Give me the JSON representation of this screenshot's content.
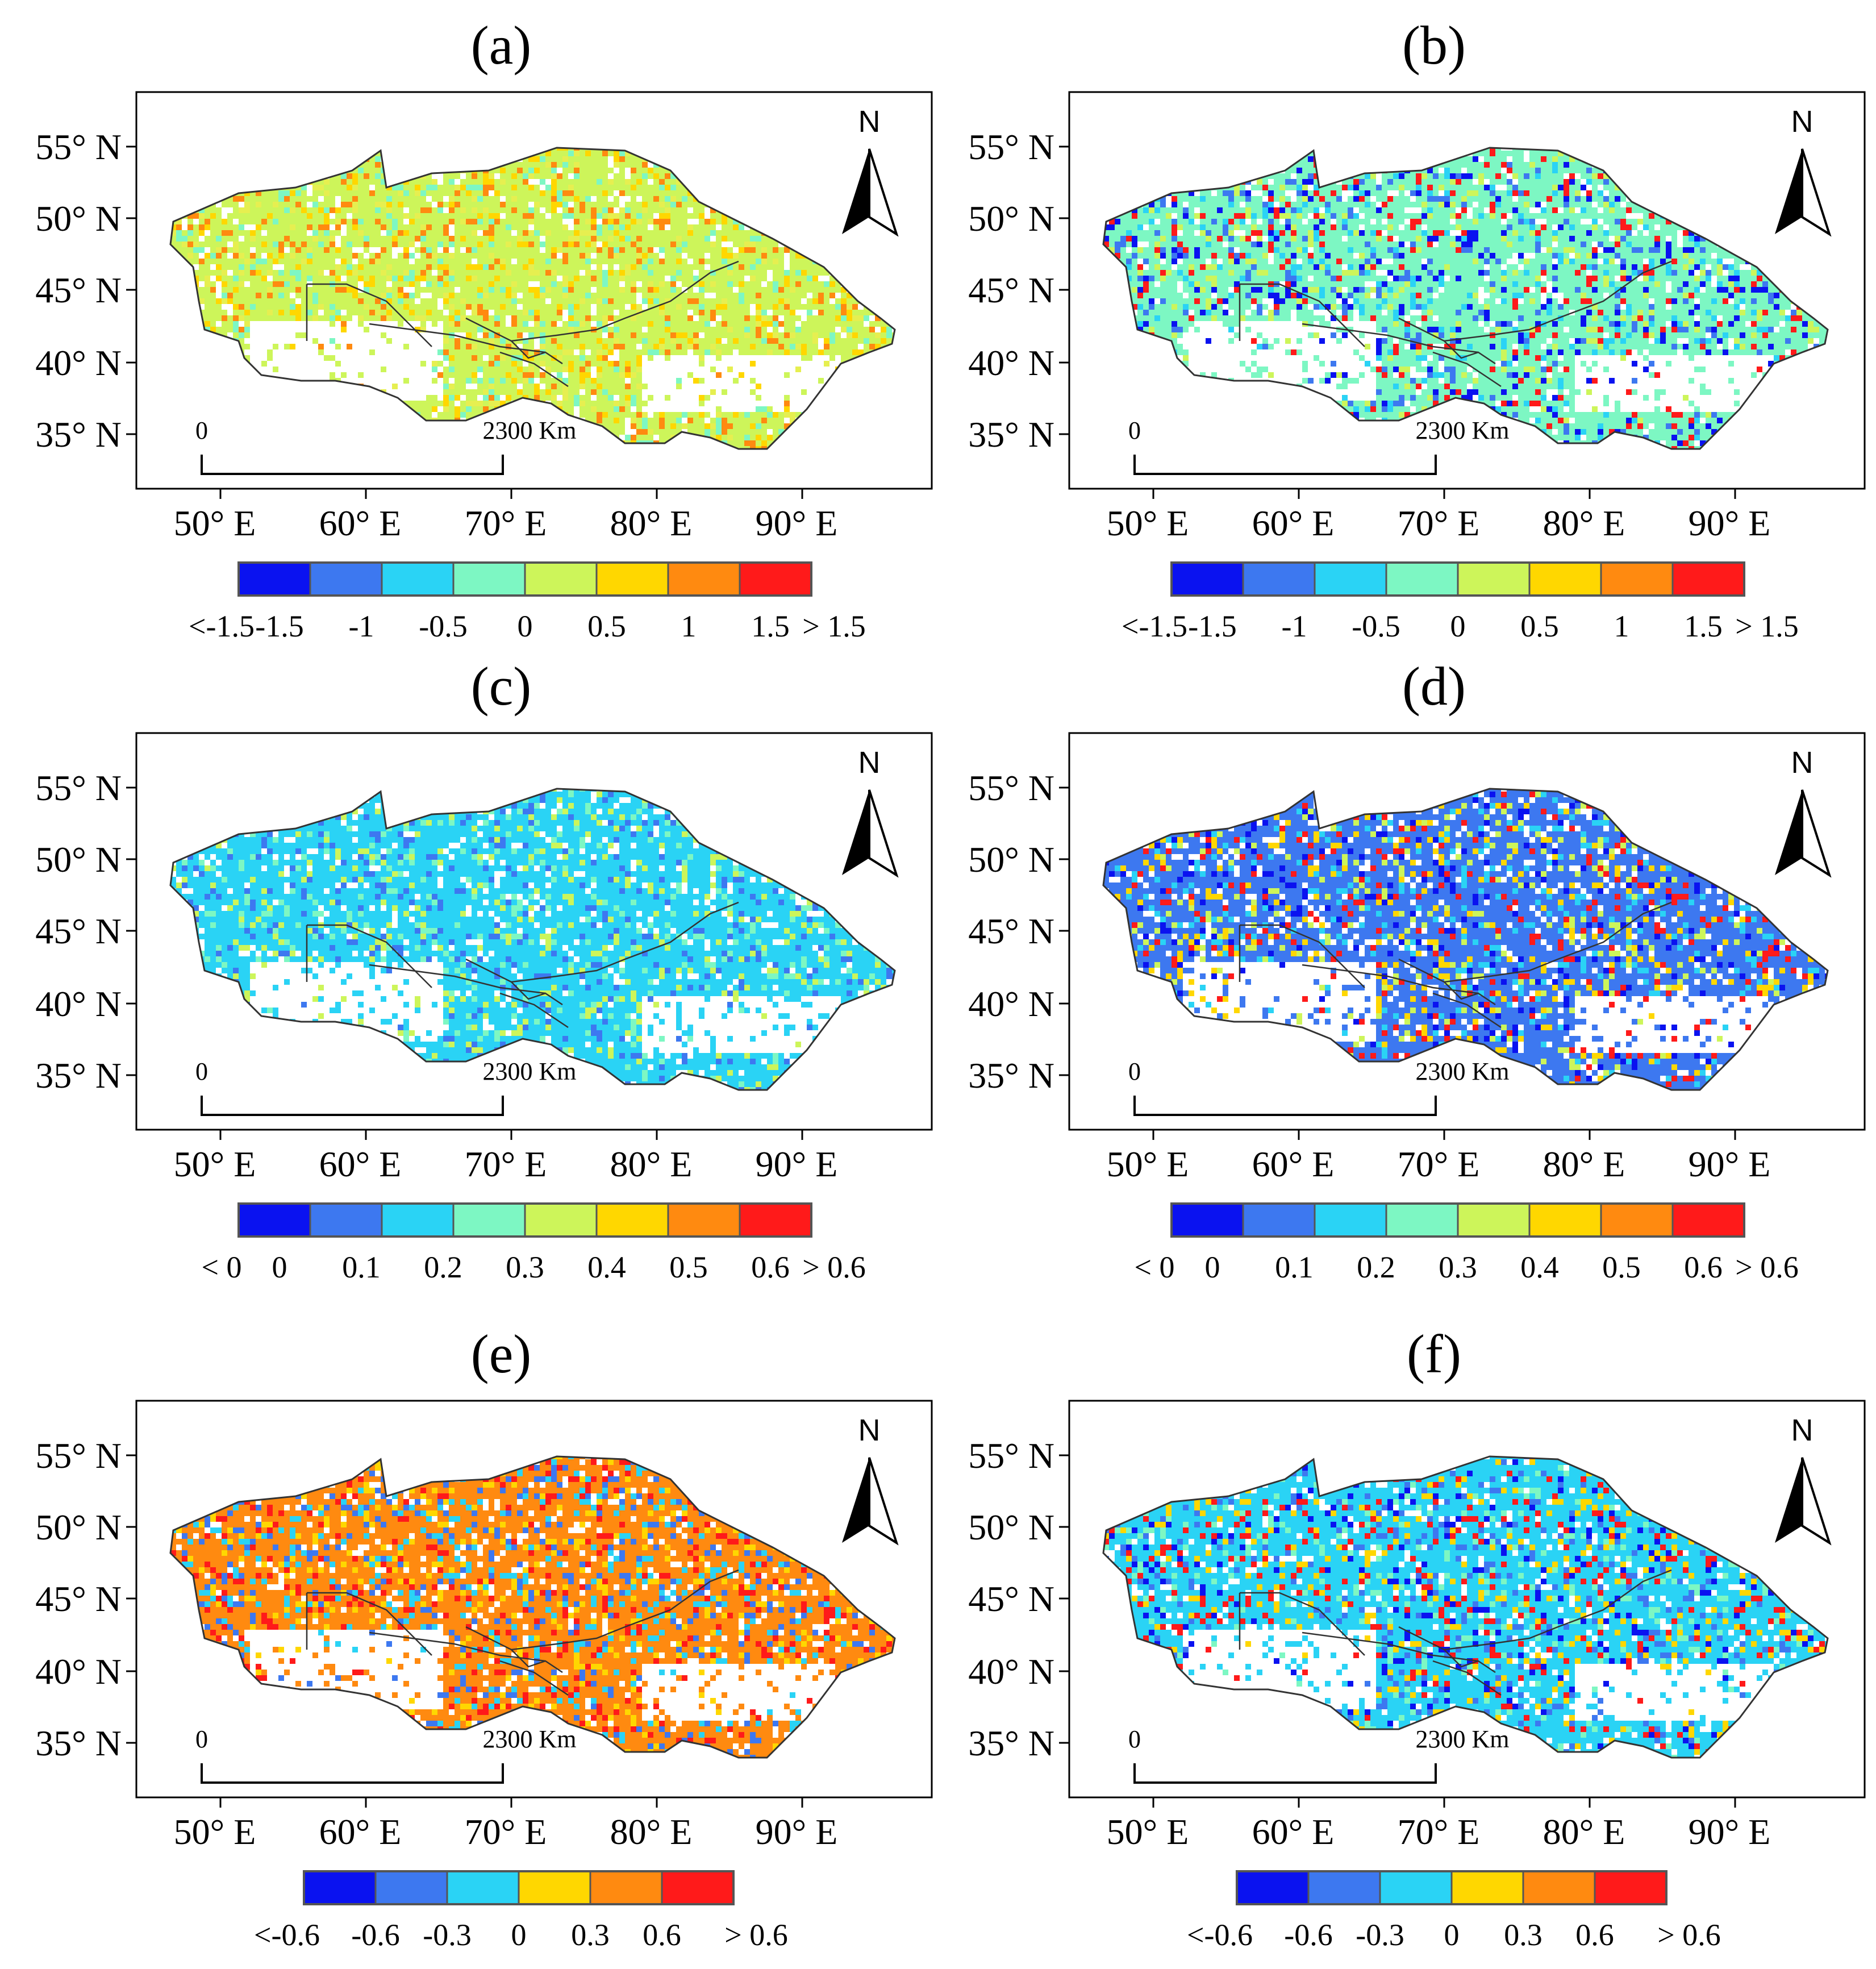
{
  "figure": {
    "panels": [
      {
        "label": "(a)",
        "legend": [
          "<-1.5",
          "-1.5",
          "-1",
          "-0.5",
          "0",
          "0.5",
          "1",
          "1.5",
          "> 1.5"
        ]
      },
      {
        "label": "(b)",
        "legend": [
          "<-1.5",
          "-1.5",
          "-1",
          "-0.5",
          "0",
          "0.5",
          "1",
          "1.5",
          "> 1.5"
        ]
      },
      {
        "label": "(c)",
        "legend": [
          "< 0",
          "0",
          "0.1",
          "0.2",
          "0.3",
          "0.4",
          "0.5",
          "0.6",
          "> 0.6"
        ]
      },
      {
        "label": "(d)",
        "legend": [
          "< 0",
          "0",
          "0.1",
          "0.2",
          "0.3",
          "0.4",
          "0.5",
          "0.6",
          "> 0.6"
        ]
      },
      {
        "label": "(e)",
        "legend": [
          "<-0.6",
          "-0.6",
          "-0.3",
          "0",
          "0.3",
          "0.6",
          "> 0.6"
        ]
      },
      {
        "label": "(f)",
        "legend": [
          "<-0.6",
          "-0.6",
          "-0.3",
          "0",
          "0.3",
          "0.6",
          "> 0.6"
        ]
      }
    ],
    "lat_ticks": [
      "55° N",
      "50° N",
      "45° N",
      "40° N",
      "35° N"
    ],
    "lon_ticks": [
      "50° E",
      "60° E",
      "70° E",
      "80° E",
      "90° E"
    ],
    "north_label": "N",
    "scale": {
      "start": "0",
      "end": "2300 Km"
    }
  },
  "colors": {
    "legend8": [
      "#0a12f0",
      "#3d78f0",
      "#2ad3f5",
      "#7df7c3",
      "#cdf55a",
      "#ffd700",
      "#ff8a10",
      "#ff1a1a"
    ],
    "legend6": [
      "#0a12f0",
      "#3d78f0",
      "#2ad3f5",
      "#ffd700",
      "#ff8a10",
      "#ff1a1a"
    ],
    "panel_fill": [
      [
        "#cdf55a",
        "#ffd700",
        "#e6ef50",
        "#ff8a10",
        "#7df7c3"
      ],
      [
        "#7df7c3",
        "#2ad3f5",
        "#cdf55a",
        "#3d78f0",
        "#ff1a1a",
        "#0a12f0"
      ],
      [
        "#2ad3f5",
        "#2ad3f5",
        "#7df7c3",
        "#cdf55a",
        "#3d78f0"
      ],
      [
        "#3d78f0",
        "#2ad3f5",
        "#ff1a1a",
        "#0a12f0",
        "#ffd700",
        "#cdf55a"
      ],
      [
        "#ff8a10",
        "#ffd700",
        "#ff1a1a",
        "#2ad3f5",
        "#3d78f0"
      ],
      [
        "#2ad3f5",
        "#0a12f0",
        "#3d78f0",
        "#ff1a1a",
        "#ffd700",
        "#7df7c3"
      ]
    ],
    "border": "#333333"
  }
}
